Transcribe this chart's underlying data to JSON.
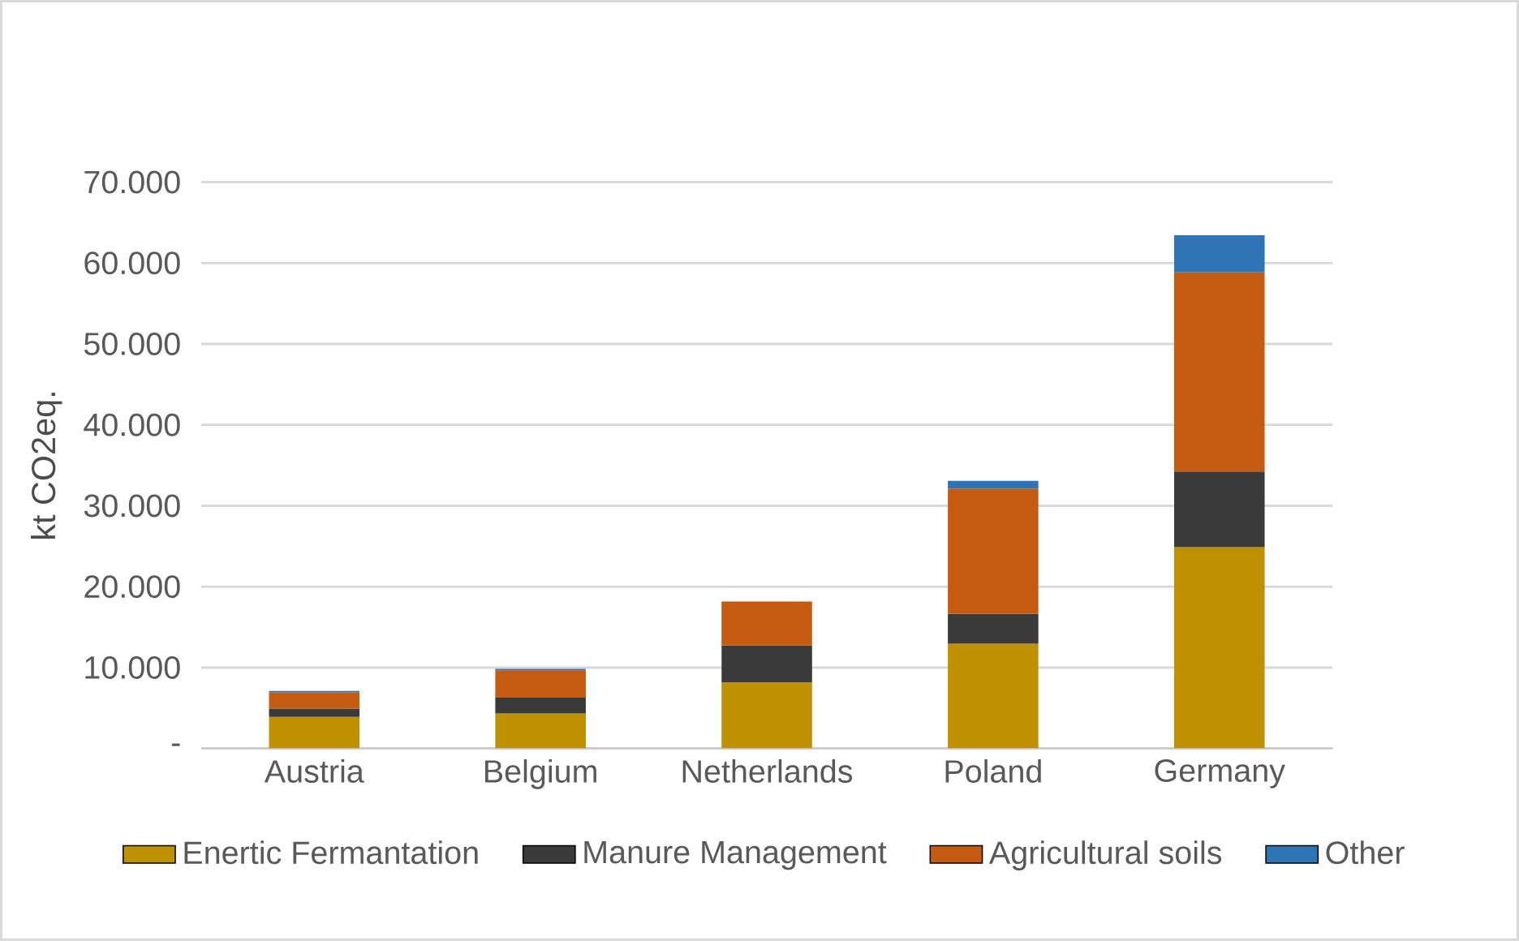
{
  "chart_data": {
    "type": "bar",
    "stacked": true,
    "ylabel": "kt CO2eq.",
    "categories": [
      "Austria",
      "Belgium",
      "Netherlands",
      "Poland",
      "Germany"
    ],
    "series": [
      {
        "name": "Enertic Fermantation",
        "color": "#bf9000",
        "values": [
          3900,
          4330,
          8170,
          12950,
          24880
        ]
      },
      {
        "name": "Manure Management",
        "color": "#3a3a3a",
        "values": [
          1030,
          1940,
          4560,
          3670,
          9340
        ]
      },
      {
        "name": "Agricultural soils",
        "color": "#c55a11",
        "values": [
          2000,
          3400,
          5440,
          15500,
          24610
        ]
      },
      {
        "name": "Other",
        "color": "#2e75b6",
        "values": [
          170,
          160,
          null,
          950,
          4600
        ]
      }
    ],
    "ylim": [
      0,
      70000
    ],
    "yticks": [
      {
        "value": 0,
        "label": "-"
      },
      {
        "value": 10000,
        "label": "10.000"
      },
      {
        "value": 20000,
        "label": "20.000"
      },
      {
        "value": 30000,
        "label": "30.000"
      },
      {
        "value": 40000,
        "label": "40.000"
      },
      {
        "value": 50000,
        "label": "50.000"
      },
      {
        "value": 60000,
        "label": "60.000"
      },
      {
        "value": 70000,
        "label": "70.000"
      }
    ],
    "grid": "y",
    "legend": "bottom"
  }
}
